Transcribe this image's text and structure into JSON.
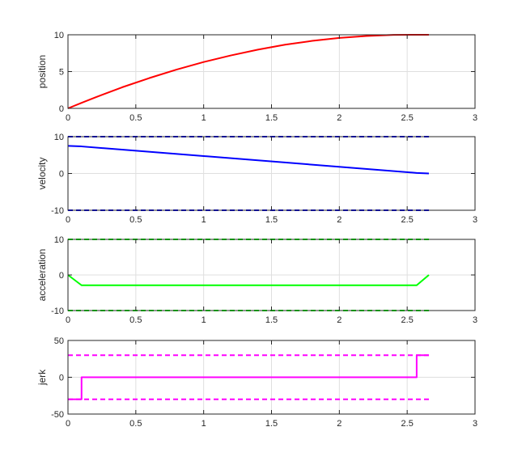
{
  "chart_data": [
    {
      "type": "line",
      "ylabel": "position",
      "xlim": [
        0,
        3
      ],
      "ylim": [
        0,
        10
      ],
      "xticks": [
        0,
        0.5,
        1,
        1.5,
        2,
        2.5,
        3
      ],
      "yticks": [
        0,
        5,
        10
      ],
      "xtick_labels": [
        "0",
        "0.5",
        "1",
        "1.5",
        "2",
        "2.5",
        "3"
      ],
      "ytick_labels": [
        "0",
        "5",
        "10"
      ],
      "grid": true,
      "series": [
        {
          "color": "#ff0000",
          "style": "solid",
          "x": [
            0,
            0.1,
            0.2,
            0.4,
            0.6,
            0.8,
            1.0,
            1.2,
            1.4,
            1.6,
            1.8,
            2.0,
            2.2,
            2.4,
            2.57,
            2.66
          ],
          "y": [
            0,
            0.75,
            1.48,
            2.87,
            4.12,
            5.27,
            6.3,
            7.19,
            7.98,
            8.65,
            9.17,
            9.58,
            9.84,
            9.98,
            10.0,
            10.0
          ]
        }
      ]
    },
    {
      "type": "line",
      "ylabel": "velocity",
      "xlim": [
        0,
        3
      ],
      "ylim": [
        -10,
        10
      ],
      "xticks": [
        0,
        0.5,
        1,
        1.5,
        2,
        2.5,
        3
      ],
      "yticks": [
        -10,
        0,
        10
      ],
      "xtick_labels": [
        "0",
        "0.5",
        "1",
        "1.5",
        "2",
        "2.5",
        "3"
      ],
      "ytick_labels": [
        "-10",
        "0",
        "10"
      ],
      "grid": true,
      "series": [
        {
          "color": "#0000ff",
          "style": "solid",
          "x": [
            0,
            0.1,
            2.57,
            2.66
          ],
          "y": [
            7.5,
            7.35,
            0.15,
            0
          ]
        },
        {
          "color": "#0000ff",
          "style": "dashed",
          "x": [
            0,
            2.66
          ],
          "y": [
            10,
            10
          ]
        },
        {
          "color": "#0000ff",
          "style": "dashed",
          "x": [
            0,
            2.66
          ],
          "y": [
            -10,
            -10
          ]
        }
      ]
    },
    {
      "type": "line",
      "ylabel": "acceleration",
      "xlim": [
        0,
        3
      ],
      "ylim": [
        -10,
        10
      ],
      "xticks": [
        0,
        0.5,
        1,
        1.5,
        2,
        2.5,
        3
      ],
      "yticks": [
        -10,
        0,
        10
      ],
      "xtick_labels": [
        "0",
        "0.5",
        "1",
        "1.5",
        "2",
        "2.5",
        "3"
      ],
      "ytick_labels": [
        "-10",
        "0",
        "10"
      ],
      "grid": true,
      "series": [
        {
          "color": "#00ff00",
          "style": "solid",
          "x": [
            0,
            0.1,
            2.57,
            2.66
          ],
          "y": [
            0,
            -2.9,
            -2.9,
            0
          ]
        },
        {
          "color": "#00ff00",
          "style": "dashed",
          "x": [
            0,
            2.66
          ],
          "y": [
            10,
            10
          ]
        },
        {
          "color": "#00ff00",
          "style": "dashed",
          "x": [
            0,
            2.66
          ],
          "y": [
            -10,
            -10
          ]
        }
      ]
    },
    {
      "type": "line",
      "ylabel": "jerk",
      "xlim": [
        0,
        3
      ],
      "ylim": [
        -50,
        50
      ],
      "xticks": [
        0,
        0.5,
        1,
        1.5,
        2,
        2.5,
        3
      ],
      "yticks": [
        -50,
        0,
        50
      ],
      "xtick_labels": [
        "0",
        "0.5",
        "1",
        "1.5",
        "2",
        "2.5",
        "3"
      ],
      "ytick_labels": [
        "-50",
        "0",
        "50"
      ],
      "grid": true,
      "series": [
        {
          "color": "#ff00ff",
          "style": "solid",
          "x": [
            0,
            0.1,
            0.1,
            2.57,
            2.57,
            2.66
          ],
          "y": [
            -30,
            -30,
            0,
            0,
            30,
            30
          ]
        },
        {
          "color": "#ff00ff",
          "style": "dashed",
          "x": [
            0,
            2.66
          ],
          "y": [
            30,
            30
          ]
        },
        {
          "color": "#ff00ff",
          "style": "dashed",
          "x": [
            0,
            2.66
          ],
          "y": [
            -30,
            -30
          ]
        }
      ]
    }
  ]
}
